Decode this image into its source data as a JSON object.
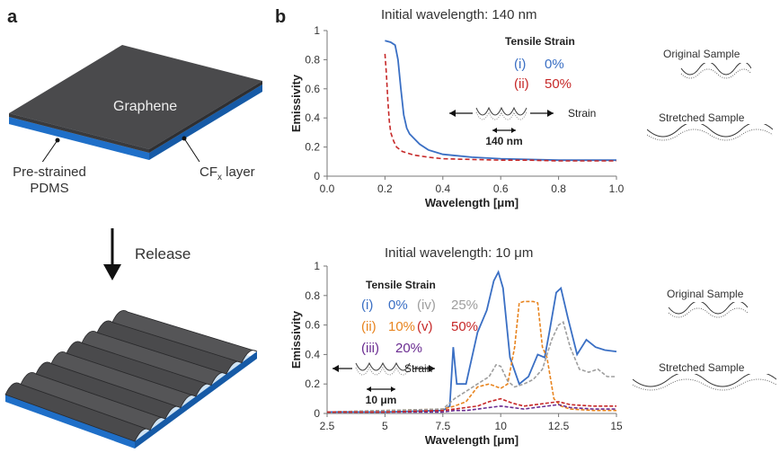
{
  "panel_a": {
    "letter": "a",
    "top_label": "Graphene",
    "substrate_label_line1": "Pre-strained",
    "substrate_label_line2": "PDMS",
    "layer_label": "CF",
    "layer_label_sub": "x",
    "layer_label_suffix": " layer",
    "release_label": "Release",
    "colors": {
      "graphene": "#4a4a4c",
      "cf_layer": "#1f6fc8",
      "pdms": "#cfe3f3"
    }
  },
  "panel_b": {
    "letter": "b",
    "top_side_labels": {
      "original": "Original Sample",
      "stretched": "Stretched Sample"
    },
    "bottom_side_labels": {
      "original": "Original Sample",
      "stretched": "Stretched Sample"
    }
  },
  "chart_data": [
    {
      "type": "line",
      "title": "Initial wavelength: 140 nm",
      "xlabel": "Wavelength [μm]",
      "ylabel": "Emissivity",
      "xlim": [
        0.0,
        1.0
      ],
      "ylim": [
        0,
        1
      ],
      "xticks": [
        "0.0",
        "0.2",
        "0.4",
        "0.6",
        "0.8",
        "1.0"
      ],
      "yticks": [
        "0",
        "0.2",
        "0.4",
        "0.6",
        "0.8",
        "1"
      ],
      "legend_title": "Tensile Strain",
      "inset_strain_label": "Strain",
      "inset_scale_label": "140 nm",
      "series": [
        {
          "name": "(i) 0%",
          "roman": "(i)",
          "pct": "0%",
          "color": "#3a6fc4",
          "dash": "",
          "x": [
            0.2,
            0.22,
            0.235,
            0.245,
            0.255,
            0.265,
            0.275,
            0.285,
            0.3,
            0.32,
            0.35,
            0.4,
            0.5,
            0.6,
            0.7,
            0.8,
            0.9,
            1.0
          ],
          "y": [
            0.93,
            0.92,
            0.9,
            0.8,
            0.6,
            0.42,
            0.33,
            0.29,
            0.26,
            0.22,
            0.18,
            0.15,
            0.13,
            0.12,
            0.115,
            0.11,
            0.11,
            0.11
          ]
        },
        {
          "name": "(ii) 50%",
          "roman": "(ii)",
          "pct": "50%",
          "color": "#c62828",
          "dash": "5,3",
          "x": [
            0.2,
            0.205,
            0.21,
            0.215,
            0.22,
            0.23,
            0.24,
            0.26,
            0.3,
            0.35,
            0.4,
            0.5,
            0.6,
            0.7,
            0.8,
            0.9,
            1.0
          ],
          "y": [
            0.84,
            0.7,
            0.52,
            0.38,
            0.3,
            0.24,
            0.2,
            0.17,
            0.145,
            0.13,
            0.12,
            0.115,
            0.11,
            0.11,
            0.105,
            0.105,
            0.105
          ]
        }
      ]
    },
    {
      "type": "line",
      "title": "Initial wavelength: 10 μm",
      "xlabel": "Wavelength [μm]",
      "ylabel": "Emissivity",
      "xlim": [
        2.5,
        15
      ],
      "ylim": [
        0,
        1
      ],
      "xticks": [
        "2.5",
        "5",
        "7.5",
        "10",
        "12.5",
        "15"
      ],
      "yticks": [
        "0",
        "0.2",
        "0.4",
        "0.6",
        "0.8",
        "1"
      ],
      "legend_title": "Tensile Strain",
      "inset_strain_label": "Strain",
      "inset_scale_label": "10 μm",
      "series": [
        {
          "name": "(i) 0%",
          "roman": "(i)",
          "pct": "0%",
          "color": "#3a6fc4",
          "dash": "",
          "x": [
            2.5,
            5,
            7.5,
            7.8,
            7.95,
            8.1,
            8.5,
            9.0,
            9.4,
            9.7,
            9.9,
            10.1,
            10.4,
            10.8,
            11.2,
            11.6,
            11.9,
            12.1,
            12.4,
            12.6,
            12.9,
            13.3,
            13.7,
            14.1,
            14.5,
            15.0
          ],
          "y": [
            0.01,
            0.01,
            0.02,
            0.05,
            0.45,
            0.2,
            0.2,
            0.55,
            0.7,
            0.9,
            0.96,
            0.85,
            0.38,
            0.2,
            0.25,
            0.4,
            0.38,
            0.55,
            0.82,
            0.85,
            0.65,
            0.4,
            0.5,
            0.45,
            0.43,
            0.42
          ]
        },
        {
          "name": "(ii) 10%",
          "roman": "(ii)",
          "pct": "10%",
          "color": "#e8841f",
          "dash": "4,2",
          "x": [
            2.5,
            5,
            7.5,
            8.0,
            8.5,
            9.0,
            9.5,
            10.0,
            10.3,
            10.6,
            10.8,
            11.0,
            11.4,
            11.6,
            11.8,
            12.0,
            12.3,
            12.6,
            13.0,
            14.0,
            15.0
          ],
          "y": [
            0.01,
            0.02,
            0.03,
            0.05,
            0.08,
            0.18,
            0.2,
            0.17,
            0.2,
            0.45,
            0.75,
            0.76,
            0.76,
            0.75,
            0.45,
            0.38,
            0.1,
            0.05,
            0.03,
            0.02,
            0.02
          ]
        },
        {
          "name": "(iii) 20%",
          "roman": "(iii)",
          "pct": "20%",
          "color": "#6a2c91",
          "dash": "4,2",
          "x": [
            2.5,
            5,
            7.5,
            8.0,
            8.5,
            9.0,
            9.5,
            10.0,
            10.5,
            11.0,
            11.5,
            12.0,
            12.5,
            13.0,
            14.0,
            15.0
          ],
          "y": [
            0.01,
            0.01,
            0.01,
            0.02,
            0.02,
            0.03,
            0.04,
            0.05,
            0.04,
            0.03,
            0.04,
            0.05,
            0.06,
            0.04,
            0.03,
            0.03
          ]
        },
        {
          "name": "(iv) 25%",
          "roman": "(iv)",
          "pct": "25%",
          "color": "#9e9e9e",
          "dash": "4,2",
          "x": [
            2.5,
            5,
            7.5,
            8.0,
            8.5,
            9.0,
            9.5,
            9.8,
            10.0,
            10.3,
            10.6,
            11.0,
            11.4,
            11.8,
            12.2,
            12.5,
            12.7,
            13.0,
            13.4,
            13.8,
            14.2,
            14.6,
            15.0
          ],
          "y": [
            0.01,
            0.02,
            0.03,
            0.1,
            0.15,
            0.2,
            0.25,
            0.33,
            0.32,
            0.22,
            0.18,
            0.2,
            0.23,
            0.3,
            0.5,
            0.6,
            0.62,
            0.45,
            0.3,
            0.28,
            0.3,
            0.25,
            0.25
          ]
        },
        {
          "name": "(v) 50%",
          "roman": "(v)",
          "pct": "50%",
          "color": "#c62828",
          "dash": "4,2",
          "x": [
            2.5,
            5,
            7.5,
            8.0,
            8.5,
            9.0,
            9.5,
            10.0,
            10.5,
            11.0,
            11.5,
            12.0,
            12.5,
            13.0,
            14.0,
            15.0
          ],
          "y": [
            0.01,
            0.01,
            0.02,
            0.03,
            0.04,
            0.05,
            0.08,
            0.1,
            0.07,
            0.05,
            0.06,
            0.07,
            0.08,
            0.06,
            0.05,
            0.05
          ]
        }
      ]
    }
  ]
}
